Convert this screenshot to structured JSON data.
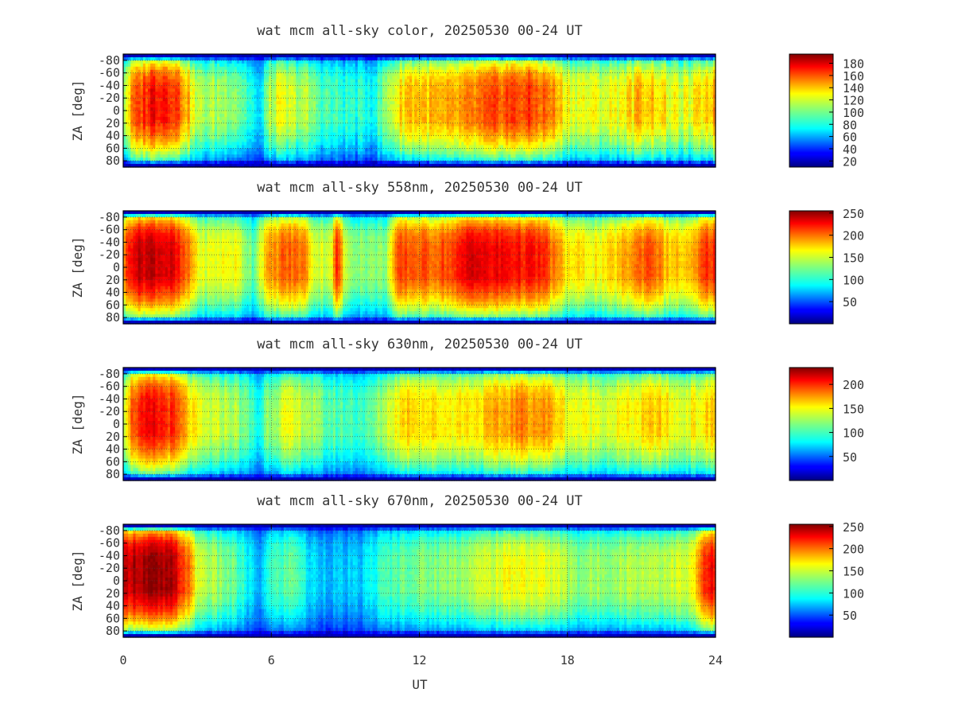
{
  "figure": {
    "xlabel": "UT",
    "x_ticks": [
      "0",
      "6",
      "12",
      "18",
      "24"
    ]
  },
  "chart_data": [
    {
      "type": "heatmap",
      "title": "wat mcm all-sky color, 20250530 00-24 UT",
      "xlabel": "UT",
      "ylabel": "ZA [deg]",
      "xlim": [
        0,
        24
      ],
      "ylim": [
        -90,
        90
      ],
      "y_ticks": [
        "-80",
        "-60",
        "-40",
        "-20",
        "0",
        "20",
        "40",
        "60",
        "80"
      ],
      "y_tick_values": [
        -80,
        -60,
        -40,
        -20,
        0,
        20,
        40,
        60,
        80
      ],
      "colorbar": {
        "colormap": "jet",
        "range": [
          10,
          195
        ],
        "ticks": [
          "20",
          "40",
          "60",
          "80",
          "100",
          "120",
          "140",
          "160",
          "180"
        ],
        "tick_values": [
          20,
          40,
          60,
          80,
          100,
          120,
          140,
          160,
          180
        ]
      },
      "grid": true,
      "time_profile": {
        "ut": [
          0,
          0.4,
          1.2,
          2.0,
          2.6,
          3.0,
          4.5,
          5.3,
          5.5,
          5.7,
          6.2,
          7.4,
          8.0,
          8.6,
          9.5,
          10.2,
          10.8,
          11.5,
          13.0,
          14.0,
          15.5,
          16.5,
          17.3,
          18.0,
          19.5,
          20.5,
          21.0,
          21.6,
          22.3,
          23.0,
          23.6,
          24.0
        ],
        "intensity": [
          110,
          150,
          175,
          170,
          140,
          110,
          110,
          80,
          60,
          95,
          120,
          110,
          95,
          90,
          85,
          85,
          115,
          140,
          135,
          145,
          160,
          160,
          150,
          125,
          120,
          130,
          140,
          135,
          120,
          120,
          135,
          140
        ]
      }
    },
    {
      "type": "heatmap",
      "title": "wat mcm all-sky 558nm, 20250530 00-24 UT",
      "xlabel": "UT",
      "ylabel": "ZA [deg]",
      "xlim": [
        0,
        24
      ],
      "ylim": [
        -90,
        90
      ],
      "y_ticks": [
        "-80",
        "-60",
        "-40",
        "-20",
        "0",
        "20",
        "40",
        "60",
        "80"
      ],
      "y_tick_values": [
        -80,
        -60,
        -40,
        -20,
        0,
        20,
        40,
        60,
        80
      ],
      "colorbar": {
        "colormap": "jet",
        "range": [
          0,
          255
        ],
        "ticks": [
          "50",
          "100",
          "150",
          "200",
          "250"
        ],
        "tick_values": [
          50,
          100,
          150,
          200,
          250
        ]
      },
      "grid": true,
      "time_profile": {
        "ut": [
          0,
          0.4,
          1.2,
          2.0,
          2.8,
          3.2,
          4.5,
          5.3,
          5.5,
          5.8,
          6.5,
          7.3,
          7.8,
          8.4,
          8.7,
          9.0,
          10.0,
          10.6,
          11.2,
          12.5,
          13.5,
          14.2,
          14.6,
          15.5,
          17.0,
          18.0,
          19.5,
          20.5,
          21.4,
          22.0,
          23.0,
          23.6,
          24.0
        ],
        "intensity": [
          190,
          235,
          240,
          230,
          180,
          150,
          160,
          120,
          150,
          175,
          200,
          195,
          150,
          150,
          220,
          140,
          130,
          130,
          205,
          200,
          210,
          240,
          225,
          225,
          215,
          165,
          160,
          185,
          210,
          175,
          170,
          210,
          215
        ]
      }
    },
    {
      "type": "heatmap",
      "title": "wat mcm all-sky 630nm, 20250530 00-24 UT",
      "xlabel": "UT",
      "ylabel": "ZA [deg]",
      "xlim": [
        0,
        24
      ],
      "ylim": [
        -90,
        90
      ],
      "y_ticks": [
        "-80",
        "-60",
        "-40",
        "-20",
        "0",
        "20",
        "40",
        "60",
        "80"
      ],
      "y_tick_values": [
        -80,
        -60,
        -40,
        -20,
        0,
        20,
        40,
        60,
        80
      ],
      "colorbar": {
        "colormap": "jet",
        "range": [
          0,
          235
        ],
        "ticks": [
          "50",
          "100",
          "150",
          "200"
        ],
        "tick_values": [
          50,
          100,
          150,
          200
        ]
      },
      "grid": true,
      "time_profile": {
        "ut": [
          0,
          0.4,
          1.2,
          2.0,
          2.8,
          3.2,
          4.5,
          5.3,
          5.5,
          5.8,
          6.5,
          7.5,
          8.2,
          9.0,
          10.0,
          10.8,
          11.5,
          13.0,
          14.5,
          16.0,
          17.2,
          18.0,
          19.5,
          21.0,
          21.6,
          22.5,
          23.5,
          24.0
        ],
        "intensity": [
          140,
          190,
          205,
          195,
          150,
          135,
          130,
          100,
          85,
          120,
          140,
          130,
          110,
          105,
          105,
          140,
          160,
          150,
          155,
          175,
          170,
          145,
          140,
          150,
          160,
          140,
          150,
          160
        ]
      }
    },
    {
      "type": "heatmap",
      "title": "wat mcm all-sky 670nm, 20250530 00-24 UT",
      "xlabel": "UT",
      "ylabel": "ZA [deg]",
      "xlim": [
        0,
        24
      ],
      "ylim": [
        -90,
        90
      ],
      "y_ticks": [
        "-80",
        "-60",
        "-40",
        "-20",
        "0",
        "20",
        "40",
        "60",
        "80"
      ],
      "y_tick_values": [
        -80,
        -60,
        -40,
        -20,
        0,
        20,
        40,
        60,
        80
      ],
      "colorbar": {
        "colormap": "jet",
        "range": [
          0,
          255
        ],
        "ticks": [
          "50",
          "100",
          "150",
          "200",
          "250"
        ],
        "tick_values": [
          50,
          100,
          150,
          200,
          250
        ]
      },
      "grid": true,
      "time_profile": {
        "ut": [
          0,
          0.4,
          1.2,
          2.0,
          2.6,
          3.0,
          4.5,
          5.2,
          5.5,
          5.8,
          7.0,
          7.5,
          8.5,
          9.5,
          10.5,
          11.5,
          13.0,
          14.5,
          16.0,
          17.5,
          18.5,
          20.5,
          22.0,
          23.0,
          23.6,
          24.0
        ],
        "intensity": [
          230,
          245,
          248,
          240,
          200,
          150,
          120,
          90,
          65,
          105,
          125,
          90,
          80,
          80,
          110,
          125,
          130,
          145,
          160,
          150,
          130,
          140,
          145,
          150,
          215,
          225
        ]
      }
    }
  ]
}
